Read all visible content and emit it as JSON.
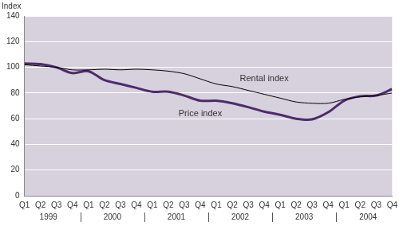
{
  "chart_data": {
    "type": "line",
    "y_label": "Index",
    "categories": [
      "Q1",
      "Q2",
      "Q3",
      "Q4",
      "Q1",
      "Q2",
      "Q3",
      "Q4",
      "Q1",
      "Q2",
      "Q3",
      "Q4",
      "Q1",
      "Q2",
      "Q3",
      "Q4",
      "Q1",
      "Q2",
      "Q3",
      "Q4",
      "Q1",
      "Q2",
      "Q3",
      "Q4"
    ],
    "x_groups": [
      "1999",
      "2000",
      "2001",
      "2002",
      "2003",
      "2004"
    ],
    "series": [
      {
        "name": "Rental index",
        "color": "#000000",
        "values": [
          102,
          101,
          100,
          98,
          98,
          98.5,
          98,
          98.5,
          98,
          97,
          95,
          91,
          87,
          85,
          82,
          79,
          76,
          73,
          72,
          72,
          75,
          77,
          78,
          80
        ]
      },
      {
        "name": "Price index",
        "color": "#4b2c6b",
        "values": [
          103,
          102.5,
          100,
          95.5,
          97,
          90,
          87,
          84,
          81,
          81,
          78,
          74,
          74,
          72,
          69,
          65.5,
          63,
          60,
          59.5,
          65,
          74,
          77.5,
          78,
          83
        ]
      }
    ],
    "ylim": [
      0,
      140
    ],
    "yticks": [
      0,
      20,
      40,
      60,
      80,
      100,
      120,
      140
    ],
    "grid": true
  }
}
